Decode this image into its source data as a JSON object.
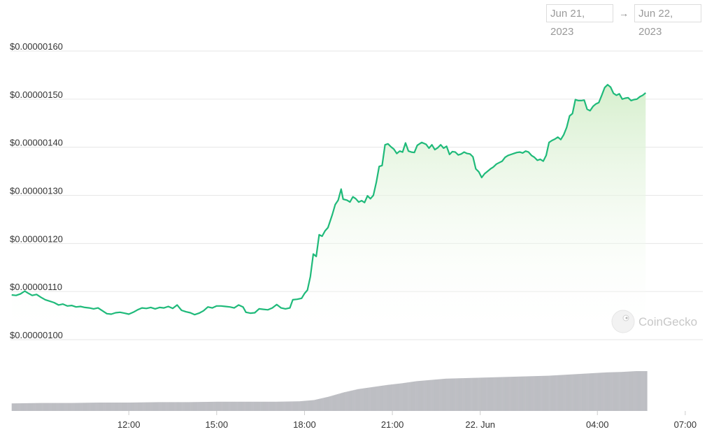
{
  "range": {
    "from": "Jun 21, 2023",
    "arrow": "→",
    "to": "Jun 22, 2023"
  },
  "watermark": "CoinGecko",
  "colors": {
    "line": "#1fba7a",
    "fill_top": "#d6efcd",
    "volume": "#bdbec3",
    "grid": "#e6e6e6",
    "axis_text": "#333333"
  },
  "chart_data": {
    "type": "area",
    "x_unit": "hours since Jun 21, 2023 08:00",
    "x_ticks": [
      {
        "x": 4,
        "label": "12:00"
      },
      {
        "x": 7,
        "label": "15:00"
      },
      {
        "x": 10,
        "label": "18:00"
      },
      {
        "x": 13,
        "label": "21:00"
      },
      {
        "x": 16,
        "label": "22. Jun"
      },
      {
        "x": 20,
        "label": "04:00"
      },
      {
        "x": 23,
        "label": "07:00"
      }
    ],
    "y_ticks": [
      {
        "y": 1.0,
        "label": "$0.00000100"
      },
      {
        "y": 1.1,
        "label": "$0.00000110"
      },
      {
        "y": 1.2,
        "label": "$0.00000120"
      },
      {
        "y": 1.3,
        "label": "$0.00000130"
      },
      {
        "y": 1.4,
        "label": "$0.00000140"
      },
      {
        "y": 1.5,
        "label": "$0.00000150"
      },
      {
        "y": 1.6,
        "label": "$0.00000160"
      }
    ],
    "xlim": [
      -0.04,
      23.6
    ],
    "ylim": [
      1.0,
      1.6
    ],
    "y_scale_note": "values in units of 1e-6 USD",
    "price": [
      [
        0.0,
        1.093
      ],
      [
        0.15,
        1.092
      ],
      [
        0.3,
        1.095
      ],
      [
        0.45,
        1.101
      ],
      [
        0.55,
        1.097
      ],
      [
        0.7,
        1.092
      ],
      [
        0.85,
        1.094
      ],
      [
        1.0,
        1.088
      ],
      [
        1.15,
        1.083
      ],
      [
        1.3,
        1.08
      ],
      [
        1.45,
        1.077
      ],
      [
        1.6,
        1.072
      ],
      [
        1.75,
        1.074
      ],
      [
        1.9,
        1.07
      ],
      [
        2.05,
        1.071
      ],
      [
        2.2,
        1.068
      ],
      [
        2.35,
        1.069
      ],
      [
        2.5,
        1.067
      ],
      [
        2.65,
        1.066
      ],
      [
        2.8,
        1.064
      ],
      [
        2.95,
        1.066
      ],
      [
        3.1,
        1.06
      ],
      [
        3.25,
        1.054
      ],
      [
        3.4,
        1.053
      ],
      [
        3.55,
        1.056
      ],
      [
        3.7,
        1.057
      ],
      [
        3.85,
        1.055
      ],
      [
        4.0,
        1.053
      ],
      [
        4.15,
        1.057
      ],
      [
        4.3,
        1.062
      ],
      [
        4.45,
        1.066
      ],
      [
        4.6,
        1.065
      ],
      [
        4.75,
        1.067
      ],
      [
        4.9,
        1.064
      ],
      [
        5.05,
        1.067
      ],
      [
        5.2,
        1.066
      ],
      [
        5.35,
        1.069
      ],
      [
        5.5,
        1.065
      ],
      [
        5.65,
        1.072
      ],
      [
        5.8,
        1.061
      ],
      [
        5.95,
        1.058
      ],
      [
        6.1,
        1.056
      ],
      [
        6.25,
        1.052
      ],
      [
        6.4,
        1.055
      ],
      [
        6.55,
        1.06
      ],
      [
        6.7,
        1.068
      ],
      [
        6.85,
        1.066
      ],
      [
        7.0,
        1.07
      ],
      [
        7.15,
        1.07
      ],
      [
        7.3,
        1.069
      ],
      [
        7.45,
        1.068
      ],
      [
        7.6,
        1.066
      ],
      [
        7.75,
        1.072
      ],
      [
        7.9,
        1.068
      ],
      [
        8.0,
        1.057
      ],
      [
        8.15,
        1.055
      ],
      [
        8.3,
        1.056
      ],
      [
        8.45,
        1.064
      ],
      [
        8.6,
        1.063
      ],
      [
        8.75,
        1.062
      ],
      [
        8.9,
        1.066
      ],
      [
        9.05,
        1.073
      ],
      [
        9.2,
        1.066
      ],
      [
        9.35,
        1.064
      ],
      [
        9.5,
        1.066
      ],
      [
        9.6,
        1.083
      ],
      [
        9.75,
        1.084
      ],
      [
        9.9,
        1.086
      ],
      [
        10.0,
        1.096
      ],
      [
        10.1,
        1.103
      ],
      [
        10.2,
        1.131
      ],
      [
        10.3,
        1.178
      ],
      [
        10.4,
        1.173
      ],
      [
        10.5,
        1.218
      ],
      [
        10.6,
        1.215
      ],
      [
        10.7,
        1.226
      ],
      [
        10.8,
        1.233
      ],
      [
        10.95,
        1.26
      ],
      [
        11.05,
        1.281
      ],
      [
        11.15,
        1.29
      ],
      [
        11.25,
        1.313
      ],
      [
        11.32,
        1.292
      ],
      [
        11.45,
        1.29
      ],
      [
        11.55,
        1.286
      ],
      [
        11.65,
        1.297
      ],
      [
        11.75,
        1.293
      ],
      [
        11.85,
        1.286
      ],
      [
        11.95,
        1.289
      ],
      [
        12.05,
        1.285
      ],
      [
        12.15,
        1.299
      ],
      [
        12.25,
        1.293
      ],
      [
        12.35,
        1.3
      ],
      [
        12.45,
        1.327
      ],
      [
        12.55,
        1.36
      ],
      [
        12.65,
        1.362
      ],
      [
        12.75,
        1.405
      ],
      [
        12.85,
        1.407
      ],
      [
        12.95,
        1.401
      ],
      [
        13.05,
        1.396
      ],
      [
        13.15,
        1.387
      ],
      [
        13.25,
        1.392
      ],
      [
        13.35,
        1.39
      ],
      [
        13.45,
        1.409
      ],
      [
        13.55,
        1.392
      ],
      [
        13.65,
        1.39
      ],
      [
        13.75,
        1.389
      ],
      [
        13.85,
        1.404
      ],
      [
        14.0,
        1.41
      ],
      [
        14.15,
        1.406
      ],
      [
        14.25,
        1.398
      ],
      [
        14.35,
        1.405
      ],
      [
        14.45,
        1.395
      ],
      [
        14.55,
        1.399
      ],
      [
        14.65,
        1.405
      ],
      [
        14.75,
        1.398
      ],
      [
        14.85,
        1.402
      ],
      [
        14.95,
        1.385
      ],
      [
        15.05,
        1.391
      ],
      [
        15.15,
        1.39
      ],
      [
        15.25,
        1.384
      ],
      [
        15.35,
        1.386
      ],
      [
        15.45,
        1.39
      ],
      [
        15.55,
        1.387
      ],
      [
        15.65,
        1.386
      ],
      [
        15.75,
        1.38
      ],
      [
        15.85,
        1.355
      ],
      [
        15.95,
        1.349
      ],
      [
        16.05,
        1.337
      ],
      [
        16.15,
        1.345
      ],
      [
        16.25,
        1.35
      ],
      [
        16.35,
        1.355
      ],
      [
        16.45,
        1.359
      ],
      [
        16.55,
        1.365
      ],
      [
        16.65,
        1.368
      ],
      [
        16.75,
        1.371
      ],
      [
        16.85,
        1.379
      ],
      [
        16.95,
        1.383
      ],
      [
        17.05,
        1.385
      ],
      [
        17.15,
        1.387
      ],
      [
        17.25,
        1.389
      ],
      [
        17.35,
        1.39
      ],
      [
        17.45,
        1.388
      ],
      [
        17.55,
        1.392
      ],
      [
        17.65,
        1.39
      ],
      [
        17.75,
        1.383
      ],
      [
        17.85,
        1.379
      ],
      [
        17.95,
        1.373
      ],
      [
        18.05,
        1.375
      ],
      [
        18.15,
        1.371
      ],
      [
        18.25,
        1.383
      ],
      [
        18.35,
        1.41
      ],
      [
        18.45,
        1.414
      ],
      [
        18.55,
        1.417
      ],
      [
        18.65,
        1.421
      ],
      [
        18.75,
        1.416
      ],
      [
        18.85,
        1.426
      ],
      [
        18.95,
        1.441
      ],
      [
        19.05,
        1.465
      ],
      [
        19.15,
        1.47
      ],
      [
        19.25,
        1.499
      ],
      [
        19.35,
        1.497
      ],
      [
        19.45,
        1.497
      ],
      [
        19.55,
        1.498
      ],
      [
        19.65,
        1.479
      ],
      [
        19.75,
        1.476
      ],
      [
        19.85,
        1.485
      ],
      [
        19.95,
        1.49
      ],
      [
        20.05,
        1.493
      ],
      [
        20.15,
        1.508
      ],
      [
        20.25,
        1.524
      ],
      [
        20.35,
        1.53
      ],
      [
        20.45,
        1.525
      ],
      [
        20.55,
        1.512
      ],
      [
        20.65,
        1.508
      ],
      [
        20.75,
        1.511
      ],
      [
        20.85,
        1.5
      ],
      [
        20.95,
        1.502
      ],
      [
        21.05,
        1.503
      ],
      [
        21.15,
        1.497
      ],
      [
        21.25,
        1.499
      ],
      [
        21.35,
        1.5
      ],
      [
        21.45,
        1.505
      ],
      [
        21.55,
        1.508
      ],
      [
        21.65,
        1.513
      ]
    ],
    "volume": [
      [
        0.0,
        0.18
      ],
      [
        1.0,
        0.19
      ],
      [
        2.0,
        0.19
      ],
      [
        3.0,
        0.2
      ],
      [
        4.0,
        0.2
      ],
      [
        5.0,
        0.21
      ],
      [
        6.0,
        0.21
      ],
      [
        7.0,
        0.22
      ],
      [
        8.0,
        0.22
      ],
      [
        9.0,
        0.22
      ],
      [
        9.8,
        0.23
      ],
      [
        10.3,
        0.26
      ],
      [
        10.8,
        0.34
      ],
      [
        11.3,
        0.44
      ],
      [
        11.8,
        0.52
      ],
      [
        12.3,
        0.57
      ],
      [
        12.8,
        0.62
      ],
      [
        13.3,
        0.66
      ],
      [
        13.8,
        0.71
      ],
      [
        14.3,
        0.74
      ],
      [
        14.8,
        0.77
      ],
      [
        15.3,
        0.78
      ],
      [
        15.8,
        0.79
      ],
      [
        16.3,
        0.8
      ],
      [
        16.8,
        0.81
      ],
      [
        17.3,
        0.82
      ],
      [
        17.8,
        0.83
      ],
      [
        18.3,
        0.84
      ],
      [
        18.8,
        0.86
      ],
      [
        19.3,
        0.88
      ],
      [
        19.8,
        0.9
      ],
      [
        20.3,
        0.92
      ],
      [
        20.8,
        0.93
      ],
      [
        21.3,
        0.95
      ],
      [
        21.65,
        0.95
      ]
    ]
  }
}
